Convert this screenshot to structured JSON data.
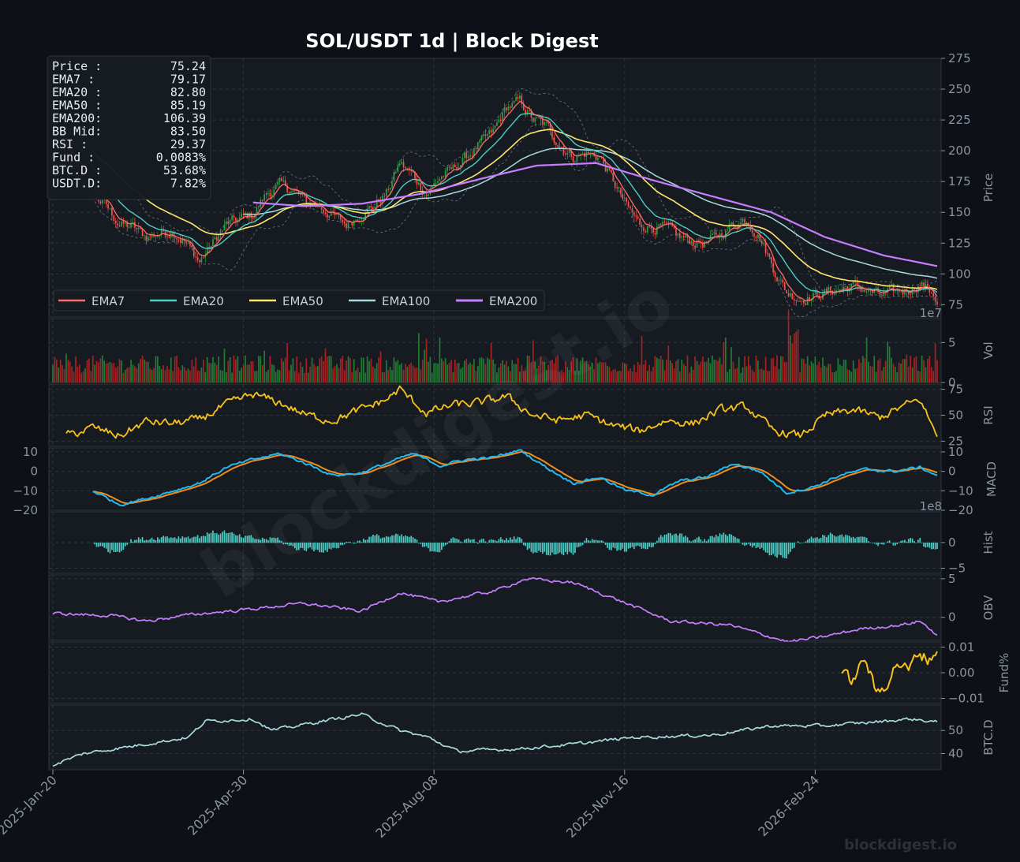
{
  "title": "SOL/USDT  1d  |  Block Digest",
  "watermark": "blockdigest.io",
  "footer_brand": "blockdigest.io",
  "colors": {
    "background": "#0d1117",
    "panel": "#161b22",
    "grid": "#30363d",
    "text": "#c9d1d9",
    "axis_text": "#8b949e",
    "up": "#2ea043",
    "down": "#f85149",
    "ema7": "#ff6b6b",
    "ema20": "#4ecdc4",
    "ema50": "#ffe66d",
    "ema100": "#a8dadc",
    "ema200": "#c77dff",
    "rsi": "#f7c21b",
    "macd": "#22b8f0",
    "signal": "#f28c18",
    "hist": "#4ecdc4",
    "obv": "#c77dff",
    "fund": "#f7c21b",
    "btcd": "#a8dadc"
  },
  "info_box": [
    {
      "label": "Price :",
      "value": "75.24"
    },
    {
      "label": "EMA7  :",
      "value": "79.17"
    },
    {
      "label": "EMA20 :",
      "value": "82.80"
    },
    {
      "label": "EMA50 :",
      "value": "85.19"
    },
    {
      "label": "EMA200:",
      "value": "106.39"
    },
    {
      "label": "BB Mid:",
      "value": "83.50"
    },
    {
      "label": "RSI  :",
      "value": "29.37"
    },
    {
      "label": "Fund  :",
      "value": "0.0083%"
    },
    {
      "label": "BTC.D :",
      "value": "53.68%"
    },
    {
      "label": "USDT.D:",
      "value": "7.82%"
    }
  ],
  "chart_data": {
    "type": "line",
    "x_ticks": [
      "2025-Jan-20",
      "2025-Apr-30",
      "2025-Aug-08",
      "2025-Nov-16",
      "2026-Feb-24"
    ],
    "x_range": [
      "2025-01-20",
      "2026-04-29"
    ],
    "legend": {
      "placement": "bottom-left of price panel",
      "entries": [
        "EMA7",
        "EMA20",
        "EMA50",
        "EMA100",
        "EMA200"
      ]
    },
    "grid": true,
    "panels": [
      {
        "id": "price",
        "ylabel": "Price",
        "ylim": [
          65,
          275
        ],
        "yticks": [
          "275",
          "250",
          "225",
          "200",
          "175",
          "150",
          "125",
          "100",
          "75"
        ],
        "yticks_values": [
          275,
          250,
          225,
          200,
          175,
          150,
          125,
          100,
          75
        ],
        "price_anchors": [
          [
            "2025-01-20",
            212
          ],
          [
            "2025-01-27",
            200
          ],
          [
            "2025-02-03",
            185
          ],
          [
            "2025-02-10",
            165
          ],
          [
            "2025-02-17",
            155
          ],
          [
            "2025-02-24",
            140
          ],
          [
            "2025-03-03",
            138
          ],
          [
            "2025-03-10",
            130
          ],
          [
            "2025-03-17",
            133
          ],
          [
            "2025-03-24",
            135
          ],
          [
            "2025-03-31",
            125
          ],
          [
            "2025-04-07",
            110
          ],
          [
            "2025-04-14",
            125
          ],
          [
            "2025-04-21",
            140
          ],
          [
            "2025-04-28",
            145
          ],
          [
            "2025-05-05",
            148
          ],
          [
            "2025-05-12",
            165
          ],
          [
            "2025-05-19",
            172
          ],
          [
            "2025-05-26",
            168
          ],
          [
            "2025-06-02",
            158
          ],
          [
            "2025-06-09",
            155
          ],
          [
            "2025-06-16",
            147
          ],
          [
            "2025-06-23",
            140
          ],
          [
            "2025-06-30",
            148
          ],
          [
            "2025-07-07",
            155
          ],
          [
            "2025-07-14",
            165
          ],
          [
            "2025-07-21",
            190
          ],
          [
            "2025-07-28",
            180
          ],
          [
            "2025-08-04",
            165
          ],
          [
            "2025-08-11",
            178
          ],
          [
            "2025-08-18",
            185
          ],
          [
            "2025-08-25",
            195
          ],
          [
            "2025-09-01",
            205
          ],
          [
            "2025-09-08",
            215
          ],
          [
            "2025-09-15",
            235
          ],
          [
            "2025-09-22",
            240
          ],
          [
            "2025-09-29",
            225
          ],
          [
            "2025-10-06",
            220
          ],
          [
            "2025-10-13",
            205
          ],
          [
            "2025-10-20",
            195
          ],
          [
            "2025-10-27",
            198
          ],
          [
            "2025-11-03",
            195
          ],
          [
            "2025-11-10",
            175
          ],
          [
            "2025-11-17",
            155
          ],
          [
            "2025-11-24",
            140
          ],
          [
            "2025-12-01",
            138
          ],
          [
            "2025-12-08",
            137
          ],
          [
            "2025-12-15",
            130
          ],
          [
            "2025-12-22",
            126
          ],
          [
            "2025-12-29",
            125
          ],
          [
            "2026-01-05",
            132
          ],
          [
            "2026-01-12",
            140
          ],
          [
            "2026-01-19",
            145
          ],
          [
            "2026-01-26",
            130
          ],
          [
            "2026-02-02",
            105
          ],
          [
            "2026-02-09",
            85
          ],
          [
            "2026-02-16",
            80
          ],
          [
            "2026-02-23",
            82
          ],
          [
            "2026-03-02",
            85
          ],
          [
            "2026-03-09",
            88
          ],
          [
            "2026-03-16",
            90
          ],
          [
            "2026-03-23",
            87
          ],
          [
            "2026-03-30",
            82
          ],
          [
            "2026-04-06",
            85
          ],
          [
            "2026-04-13",
            87
          ],
          [
            "2026-04-20",
            92
          ],
          [
            "2026-04-27",
            85
          ],
          [
            "2026-04-29",
            75.24
          ]
        ],
        "ema200_anchors": [
          [
            "2025-05-05",
            158
          ],
          [
            "2025-06-01",
            155
          ],
          [
            "2025-07-01",
            157
          ],
          [
            "2025-08-01",
            165
          ],
          [
            "2025-09-01",
            177
          ],
          [
            "2025-10-01",
            188
          ],
          [
            "2025-11-01",
            190
          ],
          [
            "2025-12-01",
            176
          ],
          [
            "2026-01-01",
            163
          ],
          [
            "2026-02-01",
            150
          ],
          [
            "2026-03-01",
            130
          ],
          [
            "2026-04-01",
            115
          ],
          [
            "2026-04-29",
            106.39
          ]
        ]
      },
      {
        "id": "volume",
        "ylabel": "Vol",
        "ylim": [
          0,
          8
        ],
        "yticks": [
          "5",
          "0"
        ],
        "yticks_values": [
          5,
          0
        ],
        "exponent": "1e7"
      },
      {
        "id": "rsi",
        "ylabel": "RSI",
        "ylim": [
          20,
          80
        ],
        "yticks": [
          "75",
          "50",
          "25"
        ],
        "yticks_values": [
          75,
          50,
          25
        ],
        "anchors": [
          [
            "2025-01-27",
            30
          ],
          [
            "2025-02-10",
            38
          ],
          [
            "2025-02-24",
            30
          ],
          [
            "2025-03-10",
            44
          ],
          [
            "2025-03-24",
            42
          ],
          [
            "2025-04-07",
            46
          ],
          [
            "2025-04-21",
            60
          ],
          [
            "2025-05-05",
            70
          ],
          [
            "2025-05-19",
            62
          ],
          [
            "2025-06-02",
            50
          ],
          [
            "2025-06-16",
            45
          ],
          [
            "2025-06-30",
            55
          ],
          [
            "2025-07-14",
            65
          ],
          [
            "2025-07-21",
            75
          ],
          [
            "2025-08-04",
            52
          ],
          [
            "2025-08-18",
            60
          ],
          [
            "2025-09-01",
            62
          ],
          [
            "2025-09-15",
            68
          ],
          [
            "2025-09-29",
            50
          ],
          [
            "2025-10-13",
            45
          ],
          [
            "2025-10-27",
            50
          ],
          [
            "2025-11-10",
            40
          ],
          [
            "2025-11-24",
            35
          ],
          [
            "2025-12-08",
            45
          ],
          [
            "2025-12-22",
            42
          ],
          [
            "2026-01-05",
            55
          ],
          [
            "2026-01-19",
            58
          ],
          [
            "2026-02-02",
            35
          ],
          [
            "2026-02-16",
            30
          ],
          [
            "2026-03-02",
            50
          ],
          [
            "2026-03-16",
            55
          ],
          [
            "2026-03-30",
            48
          ],
          [
            "2026-04-13",
            60
          ],
          [
            "2026-04-20",
            65
          ],
          [
            "2026-04-29",
            29.37
          ]
        ]
      },
      {
        "id": "macd",
        "ylabel": "MACD",
        "ylim": [
          -20,
          12
        ],
        "yticks": [
          "10",
          "0",
          "−10",
          "−20"
        ],
        "yticks_values": [
          10,
          0,
          -10,
          -20
        ],
        "anchors": [
          [
            "2025-02-10",
            -10
          ],
          [
            "2025-02-24",
            -17
          ],
          [
            "2025-03-10",
            -14
          ],
          [
            "2025-03-24",
            -10
          ],
          [
            "2025-04-07",
            -6
          ],
          [
            "2025-04-21",
            2
          ],
          [
            "2025-05-05",
            6
          ],
          [
            "2025-05-19",
            9
          ],
          [
            "2025-06-02",
            4
          ],
          [
            "2025-06-16",
            -2
          ],
          [
            "2025-06-30",
            -1
          ],
          [
            "2025-07-14",
            4
          ],
          [
            "2025-07-28",
            9
          ],
          [
            "2025-08-11",
            3
          ],
          [
            "2025-08-25",
            6
          ],
          [
            "2025-09-08",
            7
          ],
          [
            "2025-09-22",
            11
          ],
          [
            "2025-10-06",
            2
          ],
          [
            "2025-10-20",
            -6
          ],
          [
            "2025-11-03",
            -3
          ],
          [
            "2025-11-17",
            -10
          ],
          [
            "2025-12-01",
            -12
          ],
          [
            "2025-12-15",
            -5
          ],
          [
            "2025-12-29",
            -3
          ],
          [
            "2026-01-12",
            4
          ],
          [
            "2026-01-26",
            0
          ],
          [
            "2026-02-09",
            -11
          ],
          [
            "2026-02-23",
            -8
          ],
          [
            "2026-03-09",
            -2
          ],
          [
            "2026-03-23",
            1
          ],
          [
            "2026-04-06",
            0
          ],
          [
            "2026-04-20",
            2
          ],
          [
            "2026-04-29",
            -2
          ]
        ]
      },
      {
        "id": "hist",
        "ylabel": "Hist",
        "ylim": [
          -6,
          6
        ],
        "yticks": [
          "0",
          "−5"
        ],
        "yticks_values": [
          0,
          -5
        ],
        "exponent": "1e8"
      },
      {
        "id": "obv",
        "ylabel": "OBV",
        "ylim": [
          -3,
          5.5
        ],
        "yticks": [
          "5",
          "0"
        ],
        "yticks_values": [
          5,
          0
        ],
        "anchors": [
          [
            "2025-01-20",
            0.5
          ],
          [
            "2025-02-20",
            0.2
          ],
          [
            "2025-03-10",
            -0.5
          ],
          [
            "2025-04-01",
            0.3
          ],
          [
            "2025-05-01",
            1.0
          ],
          [
            "2025-06-01",
            1.8
          ],
          [
            "2025-07-01",
            0.8
          ],
          [
            "2025-07-21",
            3.2
          ],
          [
            "2025-08-10",
            2.0
          ],
          [
            "2025-09-10",
            3.5
          ],
          [
            "2025-09-25",
            5.0
          ],
          [
            "2025-10-20",
            4.5
          ],
          [
            "2025-11-10",
            2.5
          ],
          [
            "2025-12-10",
            -0.5
          ],
          [
            "2026-01-10",
            -1.0
          ],
          [
            "2026-02-10",
            -3.2
          ],
          [
            "2026-03-01",
            -2.5
          ],
          [
            "2026-03-20",
            -1.5
          ],
          [
            "2026-04-10",
            -1.0
          ],
          [
            "2026-04-20",
            -0.5
          ],
          [
            "2026-04-29",
            -2.3
          ]
        ]
      },
      {
        "id": "fund",
        "ylabel": "Fund%",
        "ylim": [
          -0.012,
          0.012
        ],
        "yticks": [
          "0.01",
          "0.00",
          "−0.01"
        ],
        "yticks_values": [
          0.01,
          0.0,
          -0.01
        ],
        "anchors": [
          [
            "2026-03-10",
            0.0
          ],
          [
            "2026-03-16",
            -0.003
          ],
          [
            "2026-03-22",
            0.006
          ],
          [
            "2026-03-28",
            -0.008
          ],
          [
            "2026-04-03",
            -0.004
          ],
          [
            "2026-04-08",
            0.004
          ],
          [
            "2026-04-14",
            0.001
          ],
          [
            "2026-04-19",
            0.008
          ],
          [
            "2026-04-24",
            0.005
          ],
          [
            "2026-04-29",
            0.0083
          ]
        ]
      },
      {
        "id": "btcd",
        "ylabel": "BTC.D",
        "ylim": [
          33,
          61
        ],
        "yticks": [
          "50",
          "40"
        ],
        "yticks_values": [
          50,
          40
        ],
        "anchors": [
          [
            "2025-01-20",
            35
          ],
          [
            "2025-02-05",
            40
          ],
          [
            "2025-03-01",
            43
          ],
          [
            "2025-04-01",
            47
          ],
          [
            "2025-04-10",
            54
          ],
          [
            "2025-05-05",
            55
          ],
          [
            "2025-05-15",
            50
          ],
          [
            "2025-06-10",
            54
          ],
          [
            "2025-07-01",
            57
          ],
          [
            "2025-07-21",
            50
          ],
          [
            "2025-08-05",
            47
          ],
          [
            "2025-08-20",
            41
          ],
          [
            "2025-09-20",
            42
          ],
          [
            "2025-10-20",
            44
          ],
          [
            "2025-11-20",
            47
          ],
          [
            "2026-01-01",
            48
          ],
          [
            "2026-02-01",
            52
          ],
          [
            "2026-03-01",
            52
          ],
          [
            "2026-04-01",
            54
          ],
          [
            "2026-04-15",
            55
          ],
          [
            "2026-04-29",
            53.68
          ]
        ]
      }
    ]
  }
}
